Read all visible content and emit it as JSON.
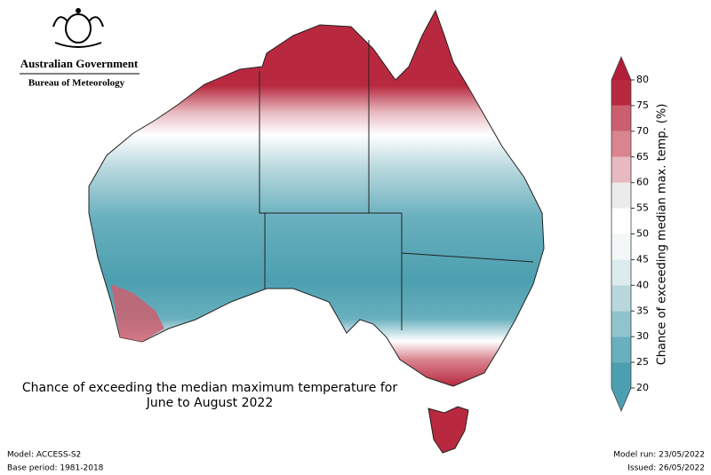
{
  "header": {
    "org": "Australian Government",
    "bureau": "Bureau of Meteorology"
  },
  "map": {
    "title_lines": [
      "Chance of exceeding the median maximum temperature for",
      "June to August 2022"
    ]
  },
  "colorbar": {
    "label": "Chance of exceeding median max. temp. (%)",
    "ticks": [
      20,
      25,
      30,
      35,
      40,
      45,
      50,
      55,
      60,
      65,
      70,
      75,
      80
    ],
    "colors": [
      "#4c9fb0",
      "#69b0be",
      "#90c4cd",
      "#b8d8dd",
      "#dcebed",
      "#f3f7f7",
      "#ffffff",
      "#ebebeb",
      "#e7b9c0",
      "#d9848f",
      "#cb5f6e",
      "#b8293f"
    ],
    "extend_low_color": "#4c9fb0",
    "extend_high_color": "#b21d3a"
  },
  "footer": {
    "model": "Model: ACCESS-S2",
    "base_period": "Base period: 1981-2018",
    "model_run": "Model run: 23/05/2022",
    "issued": "Issued: 26/05/2022"
  }
}
